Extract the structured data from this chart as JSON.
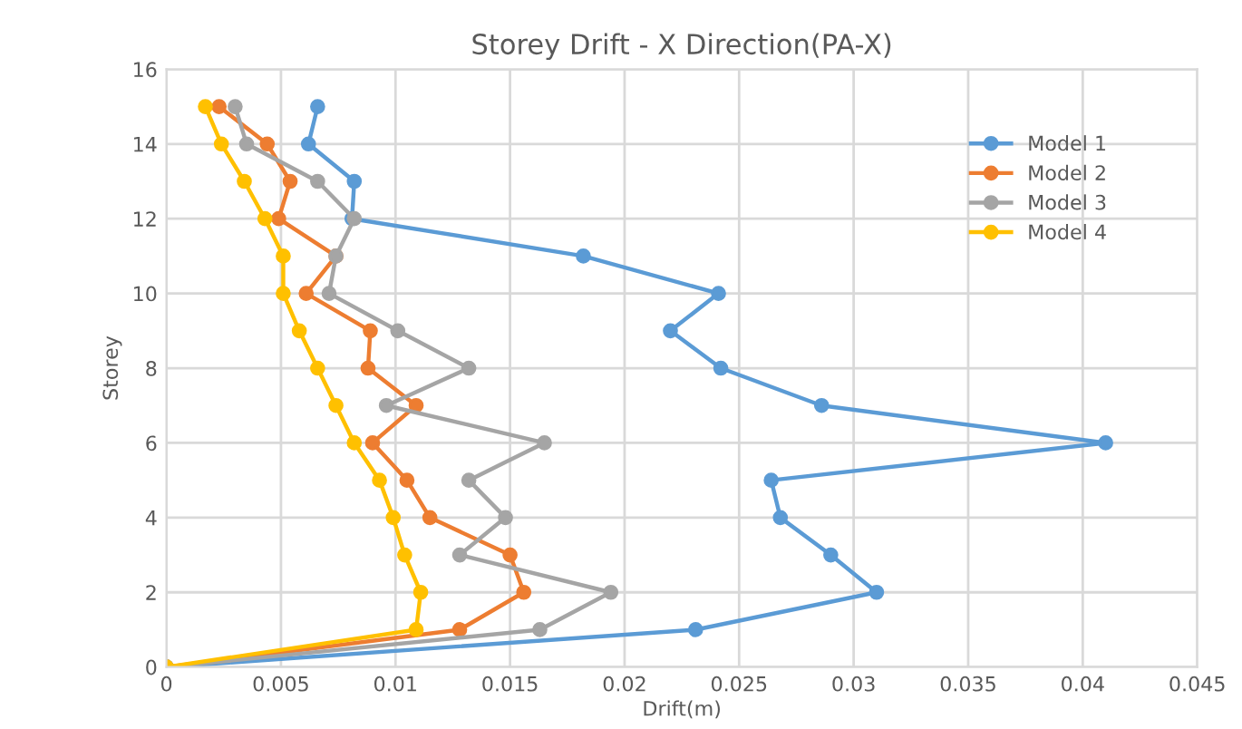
{
  "chart_data": {
    "type": "line",
    "title": "Storey Drift - X Direction(PA-X)",
    "xlabel": "Drift(m)",
    "ylabel": "Storey",
    "xlim": [
      0,
      0.045
    ],
    "xticks": [
      0,
      0.005,
      0.01,
      0.015,
      0.02,
      0.025,
      0.03,
      0.035,
      0.04,
      0.045
    ],
    "ylim": [
      0,
      16
    ],
    "yticks": [
      0,
      2,
      4,
      6,
      8,
      10,
      12,
      14,
      16
    ],
    "grid": true,
    "legend": "top right",
    "marker": "circle",
    "line_style": "solid",
    "series": [
      {
        "name": "Model 1",
        "color": "#5b9bd5",
        "x": [
          0,
          0.0231,
          0.031,
          0.029,
          0.0268,
          0.0264,
          0.041,
          0.0286,
          0.0242,
          0.022,
          0.0241,
          0.0182,
          0.0081,
          0.0082,
          0.0062,
          0.0066
        ],
        "values": [
          0,
          1,
          2,
          3,
          4,
          5,
          6,
          7,
          8,
          9,
          10,
          11,
          12,
          13,
          14,
          15
        ]
      },
      {
        "name": "Model 2",
        "color": "#ed7d31",
        "x": [
          0,
          0.0128,
          0.0156,
          0.015,
          0.0115,
          0.0105,
          0.009,
          0.0109,
          0.0088,
          0.0089,
          0.0061,
          0.0074,
          0.0049,
          0.0054,
          0.0044,
          0.0023
        ],
        "values": [
          0,
          1,
          2,
          3,
          4,
          5,
          6,
          7,
          8,
          9,
          10,
          11,
          12,
          13,
          14,
          15
        ]
      },
      {
        "name": "Model 3",
        "color": "#a5a5a5",
        "x": [
          0,
          0.0163,
          0.0194,
          0.0128,
          0.0148,
          0.0132,
          0.0165,
          0.0096,
          0.0132,
          0.0101,
          0.0071,
          0.0074,
          0.0082,
          0.0066,
          0.0035,
          0.003
        ],
        "values": [
          0,
          1,
          2,
          3,
          4,
          5,
          6,
          7,
          8,
          9,
          10,
          11,
          12,
          13,
          14,
          15
        ]
      },
      {
        "name": "Model 4",
        "color": "#ffc000",
        "x": [
          0,
          0.0109,
          0.0111,
          0.0104,
          0.0099,
          0.0093,
          0.0082,
          0.0074,
          0.0066,
          0.0058,
          0.0051,
          0.0051,
          0.0043,
          0.0034,
          0.0024,
          0.0017
        ],
        "values": [
          0,
          1,
          2,
          3,
          4,
          5,
          6,
          7,
          8,
          9,
          10,
          11,
          12,
          13,
          14,
          15
        ]
      }
    ]
  }
}
